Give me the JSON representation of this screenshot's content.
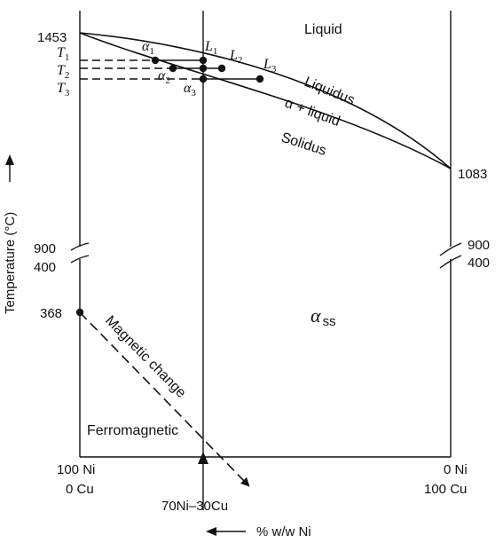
{
  "diagram": {
    "ticks": {
      "t1453": "1453",
      "t1083": "1083",
      "t900_left": "900",
      "t400_left": "400",
      "t900_right": "900",
      "t400_right": "400",
      "t368": "368"
    },
    "y_axis_label": "Temperature (°C)",
    "x_axis_label": "% w/w Ni",
    "left_end": {
      "top": "100 Ni",
      "bottom": "0 Cu"
    },
    "right_end": {
      "top": "0 Ni",
      "bottom": "100 Cu"
    },
    "composition_marker": "70Ni–30Cu",
    "regions": {
      "liquid": "Liquid",
      "liquidus": "Liquidus",
      "two_phase": "α + liquid",
      "solidus": "Solidus",
      "alpha_ss": "α",
      "alpha_ss_sub": "ss",
      "ferromagnetic": "Ferromagnetic",
      "magnetic_change": "Magnetic change"
    },
    "temp_labels": [
      {
        "letter": "T",
        "sub": "1"
      },
      {
        "letter": "T",
        "sub": "2"
      },
      {
        "letter": "T",
        "sub": "3"
      }
    ],
    "liquid_labels": [
      {
        "letter": "L",
        "sub": "1"
      },
      {
        "letter": "L",
        "sub": "2"
      },
      {
        "letter": "L",
        "sub": "3"
      }
    ],
    "alpha_labels": [
      {
        "letter": "α",
        "sub": "1"
      },
      {
        "letter": "α",
        "sub": "2"
      },
      {
        "letter": "α",
        "sub": "3"
      }
    ]
  }
}
